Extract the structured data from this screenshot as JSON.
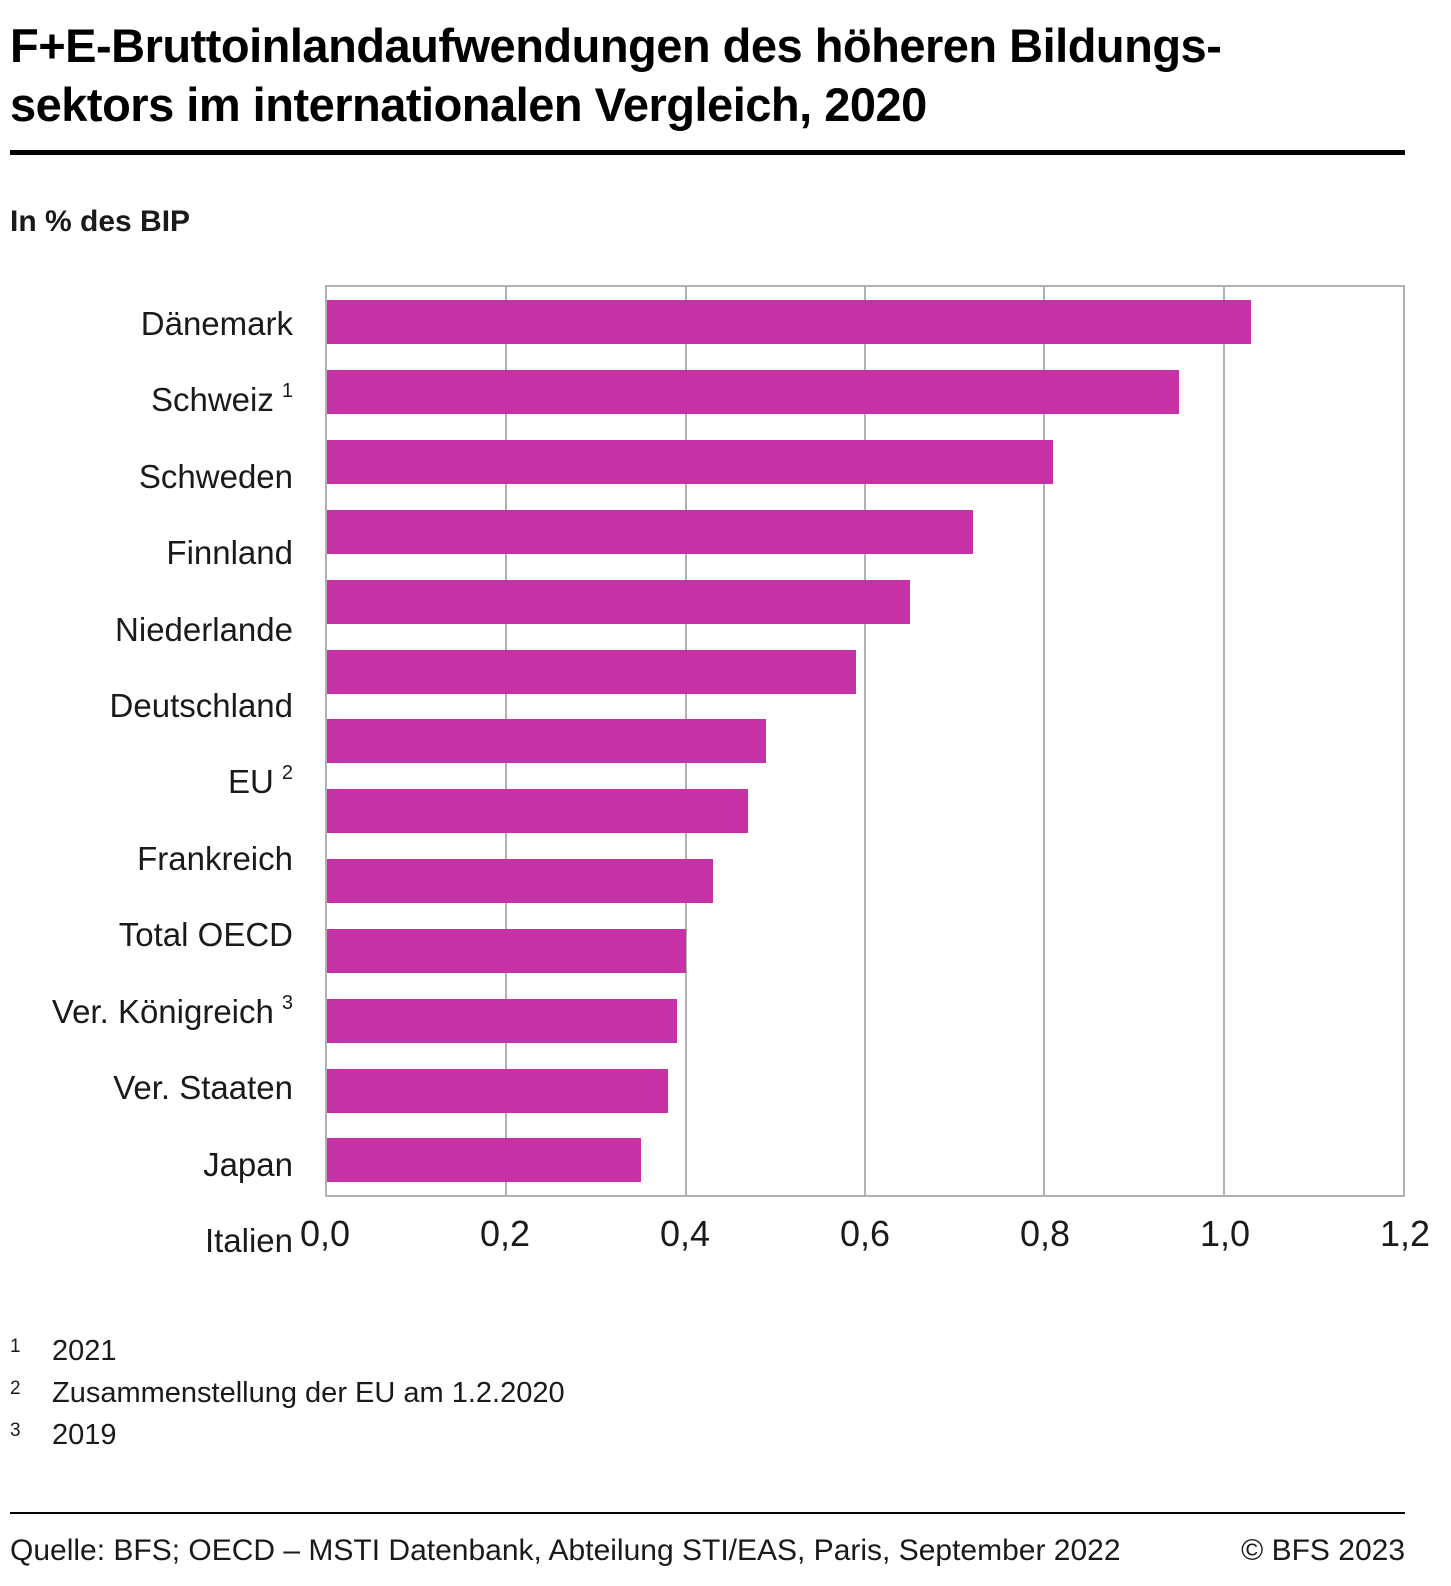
{
  "title": "F+E-Bruttoinlandaufwendungen des höheren Bildungs-\nsektors im internationalen Vergleich, 2020",
  "subtitle": "In % des BIP",
  "chart_data": {
    "type": "bar",
    "orientation": "horizontal",
    "title": "F+E-Bruttoinlandaufwendungen des höheren Bildungssektors im internationalen Vergleich, 2020",
    "xlabel": "In % des BIP",
    "xlim": [
      0,
      1.2
    ],
    "xticks": [
      0,
      0.2,
      0.4,
      0.6,
      0.8,
      1.0,
      1.2
    ],
    "xtick_labels": [
      "0,0",
      "0,2",
      "0,4",
      "0,6",
      "0,8",
      "1,0",
      "1,2"
    ],
    "grid": true,
    "legend": "none",
    "bar_color": "#c632a6",
    "categories": [
      "Dänemark",
      "Schweiz",
      "Schweden",
      "Finnland",
      "Niederlande",
      "Deutschland",
      "EU",
      "Frankreich",
      "Total OECD",
      "Ver. Königreich",
      "Ver. Staaten",
      "Japan",
      "Italien"
    ],
    "footnote_markers": [
      "",
      "1",
      "",
      "",
      "",
      "",
      "2",
      "",
      "",
      "3",
      "",
      "",
      ""
    ],
    "values": [
      1.03,
      0.95,
      0.81,
      0.72,
      0.65,
      0.59,
      0.49,
      0.47,
      0.43,
      0.4,
      0.39,
      0.38,
      0.35
    ]
  },
  "footnotes": [
    {
      "marker": "1",
      "text": "2021"
    },
    {
      "marker": "2",
      "text": "Zusammenstellung der EU am 1.2.2020"
    },
    {
      "marker": "3",
      "text": "2019"
    }
  ],
  "footer": {
    "source": "Quelle: BFS; OECD – MSTI Datenbank, Abteilung STI/EAS, Paris, September 2022",
    "copyright": "© BFS 2023"
  }
}
